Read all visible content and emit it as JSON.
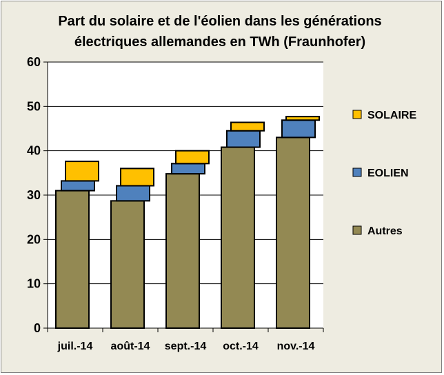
{
  "chart_data": {
    "type": "bar",
    "stacked": true,
    "title_line1": "Part du solaire et de l'éolien dans les générations",
    "title_line2": "électriques allemandes en TWh (Fraunhofer)",
    "categories": [
      "juil.-14",
      "août-14",
      "sept.-14",
      "oct.-14",
      "nov.-14"
    ],
    "series": [
      {
        "name": "Autres",
        "color": "#938953",
        "values": [
          31,
          28.7,
          34.8,
          40.8,
          43
        ]
      },
      {
        "name": "EOLIEN",
        "color": "#4f81bd",
        "values": [
          2.2,
          3.4,
          2.3,
          3.7,
          3.9
        ]
      },
      {
        "name": "SOLAIRE",
        "color": "#ffc000",
        "values": [
          4.4,
          3.9,
          2.9,
          1.9,
          0.8
        ]
      }
    ],
    "ylim": [
      0,
      60
    ],
    "yticks": [
      0,
      10,
      20,
      30,
      40,
      50,
      60
    ],
    "xlabel": "",
    "ylabel": "",
    "grid": true,
    "legend": [
      "SOLAIRE",
      "EOLIEN",
      "Autres"
    ],
    "legend_position": "right"
  }
}
